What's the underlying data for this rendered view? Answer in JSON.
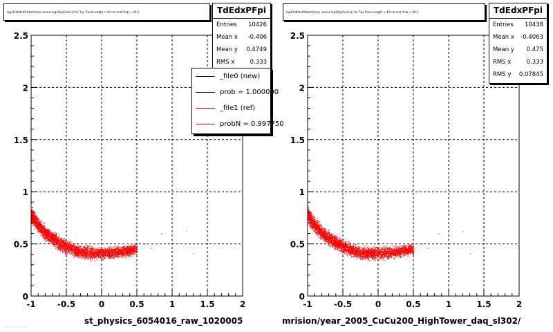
{
  "colors": {
    "series_new": "#000000",
    "series_ref": "#ff0000",
    "points": "#ff0000",
    "grid": "#000000"
  },
  "chart_data": [
    {
      "type": "scatter",
      "title": "log10(dEdx(fit)(keV/cm)) versus log10(p(GeV/c)) for Tpc.Track.Length > 40 cm and Prob > 69.3",
      "xlabel": "st_physics_6054016_raw_1020005",
      "ylabel": "",
      "xlim": [
        -1,
        2
      ],
      "ylim": [
        0,
        2.5
      ],
      "xticks": [
        "-1",
        "-0.5",
        "0",
        "0.5",
        "1",
        "1.5",
        "2"
      ],
      "yticks": [
        "0",
        "0.5",
        "1",
        "1.5",
        "2",
        "2.5"
      ],
      "grid": true,
      "band": {
        "x": [
          -1.0,
          -0.9,
          -0.8,
          -0.7,
          -0.6,
          -0.5,
          -0.4,
          -0.3,
          -0.2,
          -0.1,
          0.0,
          0.1,
          0.2,
          0.3,
          0.4,
          0.5
        ],
        "y": [
          0.78,
          0.68,
          0.61,
          0.555,
          0.51,
          0.475,
          0.445,
          0.425,
          0.415,
          0.41,
          0.41,
          0.415,
          0.42,
          0.43,
          0.44,
          0.45
        ]
      },
      "stats": {
        "name": "TdEdxPFpi",
        "rows": [
          {
            "label": "Entries",
            "value": "10426"
          },
          {
            "label": "Mean x",
            "value": "-0.406"
          },
          {
            "label": "Mean y",
            "value": "0.4749"
          },
          {
            "label": "RMS x",
            "value": "0.333"
          }
        ]
      },
      "legend": [
        {
          "label": "_file0 (new)",
          "color": "#000000"
        },
        {
          "label": "prob = 1.000000",
          "color": "#000000"
        },
        {
          "label": "_file1 (ref)",
          "color": "#ff0000"
        },
        {
          "label": "probN = 0.997750",
          "color": "#ff0000"
        }
      ]
    },
    {
      "type": "scatter",
      "title": "log10(dEdx(fit)(keV/cm)) versus log10(p(GeV/c)) for Tpc.Track.Length > 40 cm and Prob > 69.3",
      "xlabel": "mrision/year_2005_CuCu200_HighTower_daq_sl302/",
      "ylabel": "",
      "xlim": [
        -1,
        2
      ],
      "ylim": [
        0,
        2.5
      ],
      "xticks": [
        "-1",
        "-0.5",
        "0",
        "0.5",
        "1",
        "1.5",
        "2"
      ],
      "yticks": [
        "0",
        "0.5",
        "1",
        "1.5",
        "2",
        "2.5"
      ],
      "grid": true,
      "band": {
        "x": [
          -1.0,
          -0.9,
          -0.8,
          -0.7,
          -0.6,
          -0.5,
          -0.4,
          -0.3,
          -0.2,
          -0.1,
          0.0,
          0.1,
          0.2,
          0.3,
          0.4,
          0.5
        ],
        "y": [
          0.78,
          0.68,
          0.61,
          0.555,
          0.51,
          0.475,
          0.445,
          0.425,
          0.415,
          0.41,
          0.41,
          0.415,
          0.42,
          0.43,
          0.44,
          0.45
        ]
      },
      "stats": {
        "name": "TdEdxPFpi",
        "rows": [
          {
            "label": "Entries",
            "value": "10438"
          },
          {
            "label": "Mean x",
            "value": "-0.4063"
          },
          {
            "label": "Mean y",
            "value": "0.475"
          },
          {
            "label": "RMS x",
            "value": "0.333"
          },
          {
            "label": "RMS y",
            "value": "0.07845"
          }
        ]
      }
    }
  ],
  "footer": {
    "scrap_text": "-- ... -- -- -- ... ----"
  }
}
